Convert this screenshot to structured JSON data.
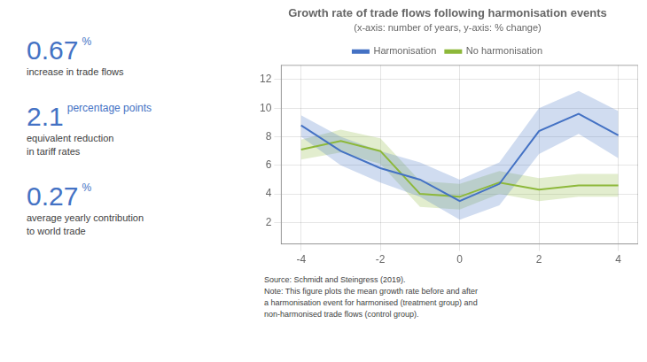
{
  "chart_data": {
    "type": "line",
    "title": "Growth rate of trade flows following harmonisation events",
    "subtitle": "(x-axis: number of years, y-axis: % change)",
    "x": [
      -4,
      -3,
      -2,
      -1,
      0,
      1,
      2,
      3,
      4
    ],
    "series": [
      {
        "name": "Harmonisation",
        "color": "#4472c4",
        "values": [
          8.8,
          7.0,
          5.8,
          5.0,
          3.5,
          4.7,
          8.4,
          9.6,
          8.1
        ],
        "ci_upper": [
          9.5,
          8.0,
          7.0,
          6.2,
          5.0,
          6.2,
          10.0,
          11.2,
          9.8
        ],
        "ci_lower": [
          8.0,
          6.0,
          4.8,
          3.8,
          2.2,
          3.2,
          6.8,
          8.2,
          6.5
        ]
      },
      {
        "name": "No harmonisation",
        "color": "#8db83a",
        "values": [
          7.1,
          7.7,
          7.0,
          4.0,
          3.8,
          4.8,
          4.3,
          4.6,
          4.6
        ],
        "ci_upper": [
          7.8,
          8.5,
          7.9,
          4.9,
          4.7,
          5.6,
          5.1,
          5.4,
          5.4
        ],
        "ci_lower": [
          6.4,
          6.9,
          6.1,
          3.1,
          2.9,
          4.0,
          3.5,
          3.8,
          3.8
        ]
      }
    ],
    "xlim": [
      -4.5,
      4.5
    ],
    "xticks": [
      -4,
      -2,
      0,
      2,
      4
    ],
    "ylim": [
      0.5,
      13
    ],
    "yticks": [
      2,
      4,
      6,
      8,
      10,
      12
    ],
    "grid": true,
    "legend": "top",
    "annotations": [
      [
        "0.67",
        "%",
        "increase in trade flows"
      ],
      [
        "2.1",
        "percentage points",
        "equivalent reduction",
        "in tariff rates"
      ],
      [
        "0.27",
        "%",
        "average yearly contribution",
        "to world trade"
      ]
    ],
    "source": "Source: Schmidt and Steingress (2019).\nNote: This figure plots the mean growth rate before and after\na harmonisation event for harmonised (treatment group) and\nnon-harmonised trade flows (control group)."
  }
}
